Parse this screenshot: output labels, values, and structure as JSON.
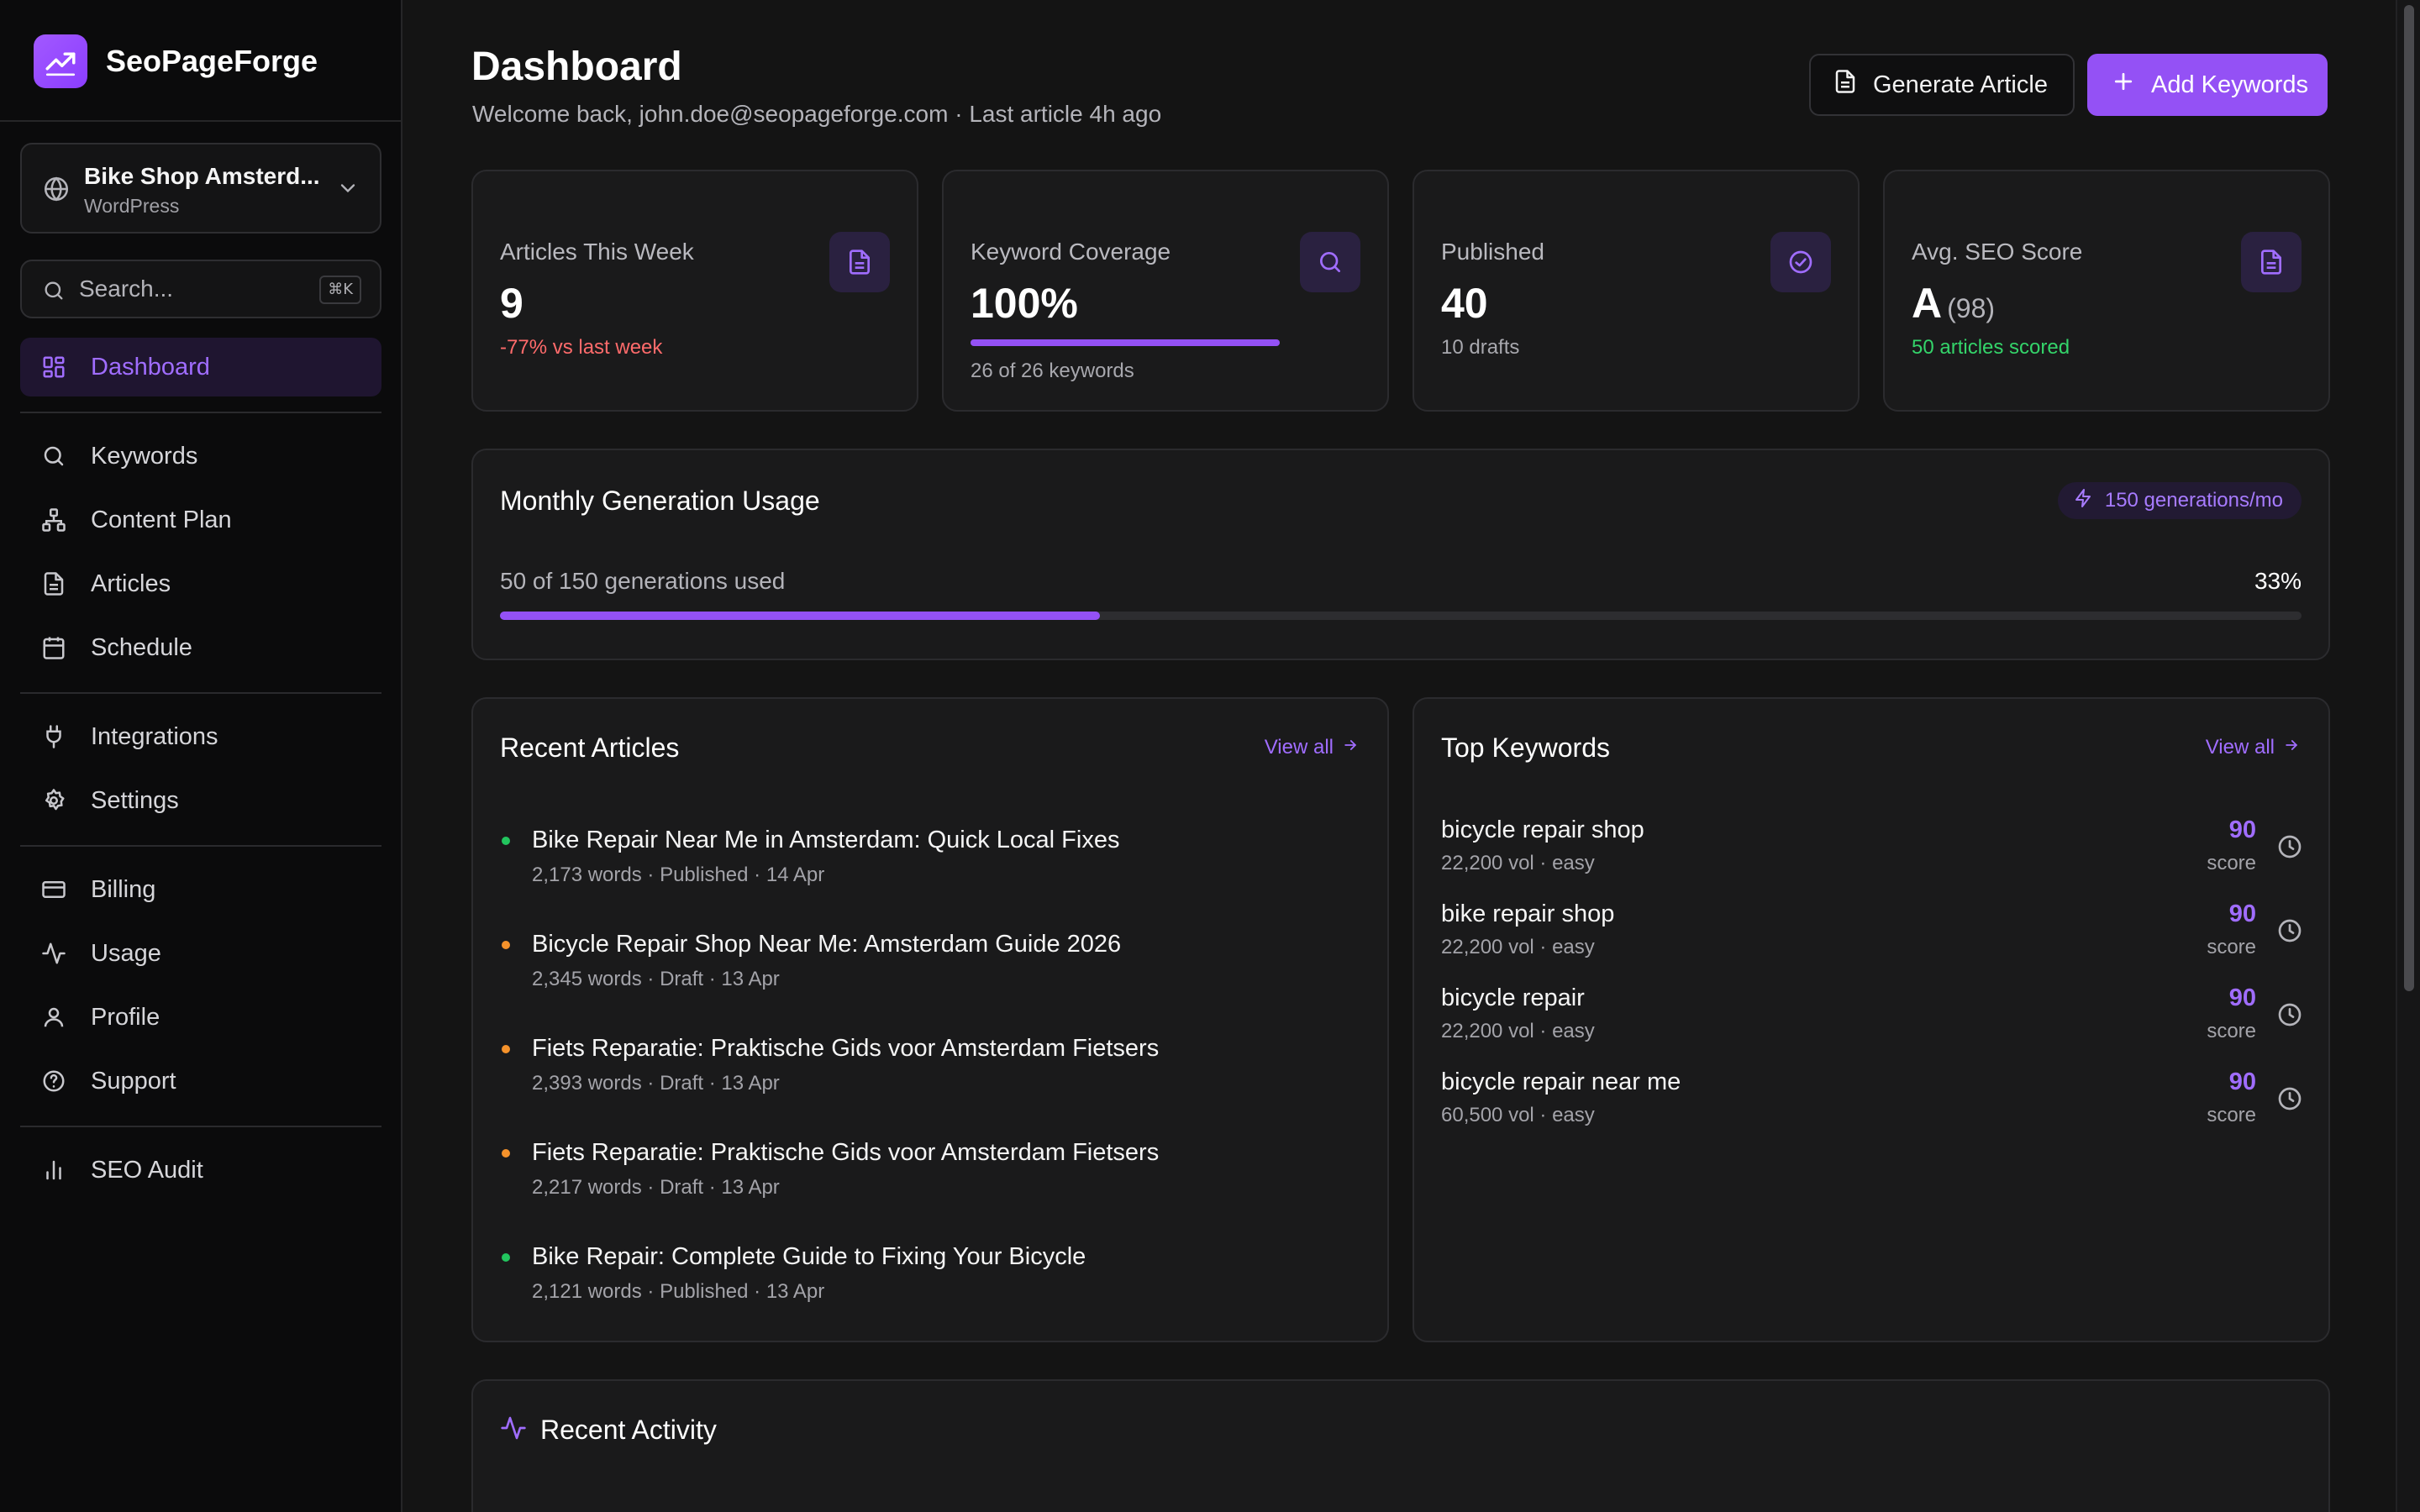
{
  "colors": {
    "accent": "#9451f5",
    "accent_text": "#a06dff",
    "background": "#141414",
    "sidebar": "#0b0b0c",
    "card": "#1a1a1b",
    "published_dot": "#22c55e",
    "draft_dot": "#f5922b",
    "negative": "#ff6b6b",
    "positive": "#34d46a"
  },
  "brand": {
    "name": "SeoPageForge",
    "icon": "trending-up-icon"
  },
  "site_selector": {
    "name": "Bike Shop Amsterd...",
    "platform": "WordPress"
  },
  "search": {
    "placeholder": "Search...",
    "shortcut": "⌘K"
  },
  "nav": {
    "dashboard": "Dashboard",
    "keywords": "Keywords",
    "content_plan": "Content Plan",
    "articles": "Articles",
    "schedule": "Schedule",
    "integrations": "Integrations",
    "settings": "Settings",
    "billing": "Billing",
    "usage": "Usage",
    "profile": "Profile",
    "support": "Support",
    "seo_audit": "SEO Audit"
  },
  "header": {
    "title": "Dashboard",
    "subtitle": "Welcome back, john.doe@seopageforge.com · Last article 4h ago",
    "generate_label": "Generate Article",
    "add_keywords_label": "Add Keywords"
  },
  "stats": {
    "articles_week": {
      "label": "Articles This Week",
      "value": "9",
      "note": "-77% vs last week"
    },
    "keyword_coverage": {
      "label": "Keyword Coverage",
      "value": "100%",
      "progress": 1.0,
      "note": "26 of 26 keywords"
    },
    "published": {
      "label": "Published",
      "value": "40",
      "note": "10 drafts"
    },
    "avg_seo": {
      "label": "Avg. SEO Score",
      "grade": "A",
      "score": "(98)",
      "note": "50 articles scored"
    }
  },
  "usage": {
    "title": "Monthly Generation Usage",
    "plan": "150 generations/mo",
    "used_text": "50 of 150 generations used",
    "percent_text": "33%",
    "fraction": 0.333
  },
  "recent_articles": {
    "title": "Recent Articles",
    "view_all": "View all",
    "items": [
      {
        "title": "Bike Repair Near Me in Amsterdam: Quick Local Fixes",
        "meta": "2,173 words · Published · 14 Apr",
        "status": "published"
      },
      {
        "title": "Bicycle Repair Shop Near Me: Amsterdam Guide 2026",
        "meta": "2,345 words · Draft · 13 Apr",
        "status": "draft"
      },
      {
        "title": "Fiets Reparatie: Praktische Gids voor Amsterdam Fietsers",
        "meta": "2,393 words · Draft · 13 Apr",
        "status": "draft"
      },
      {
        "title": "Fiets Reparatie: Praktische Gids voor Amsterdam Fietsers",
        "meta": "2,217 words · Draft · 13 Apr",
        "status": "draft"
      },
      {
        "title": "Bike Repair: Complete Guide to Fixing Your Bicycle",
        "meta": "2,121 words · Published · 13 Apr",
        "status": "published"
      }
    ]
  },
  "top_keywords": {
    "title": "Top Keywords",
    "view_all": "View all",
    "items": [
      {
        "keyword": "bicycle repair shop",
        "meta": "22,200 vol · easy",
        "score": "90",
        "score_label": "score"
      },
      {
        "keyword": "bike repair shop",
        "meta": "22,200 vol · easy",
        "score": "90",
        "score_label": "score"
      },
      {
        "keyword": "bicycle repair",
        "meta": "22,200 vol · easy",
        "score": "90",
        "score_label": "score"
      },
      {
        "keyword": "bicycle repair near me",
        "meta": "60,500 vol · easy",
        "score": "90",
        "score_label": "score"
      }
    ]
  },
  "recent_activity": {
    "title": "Recent Activity"
  }
}
